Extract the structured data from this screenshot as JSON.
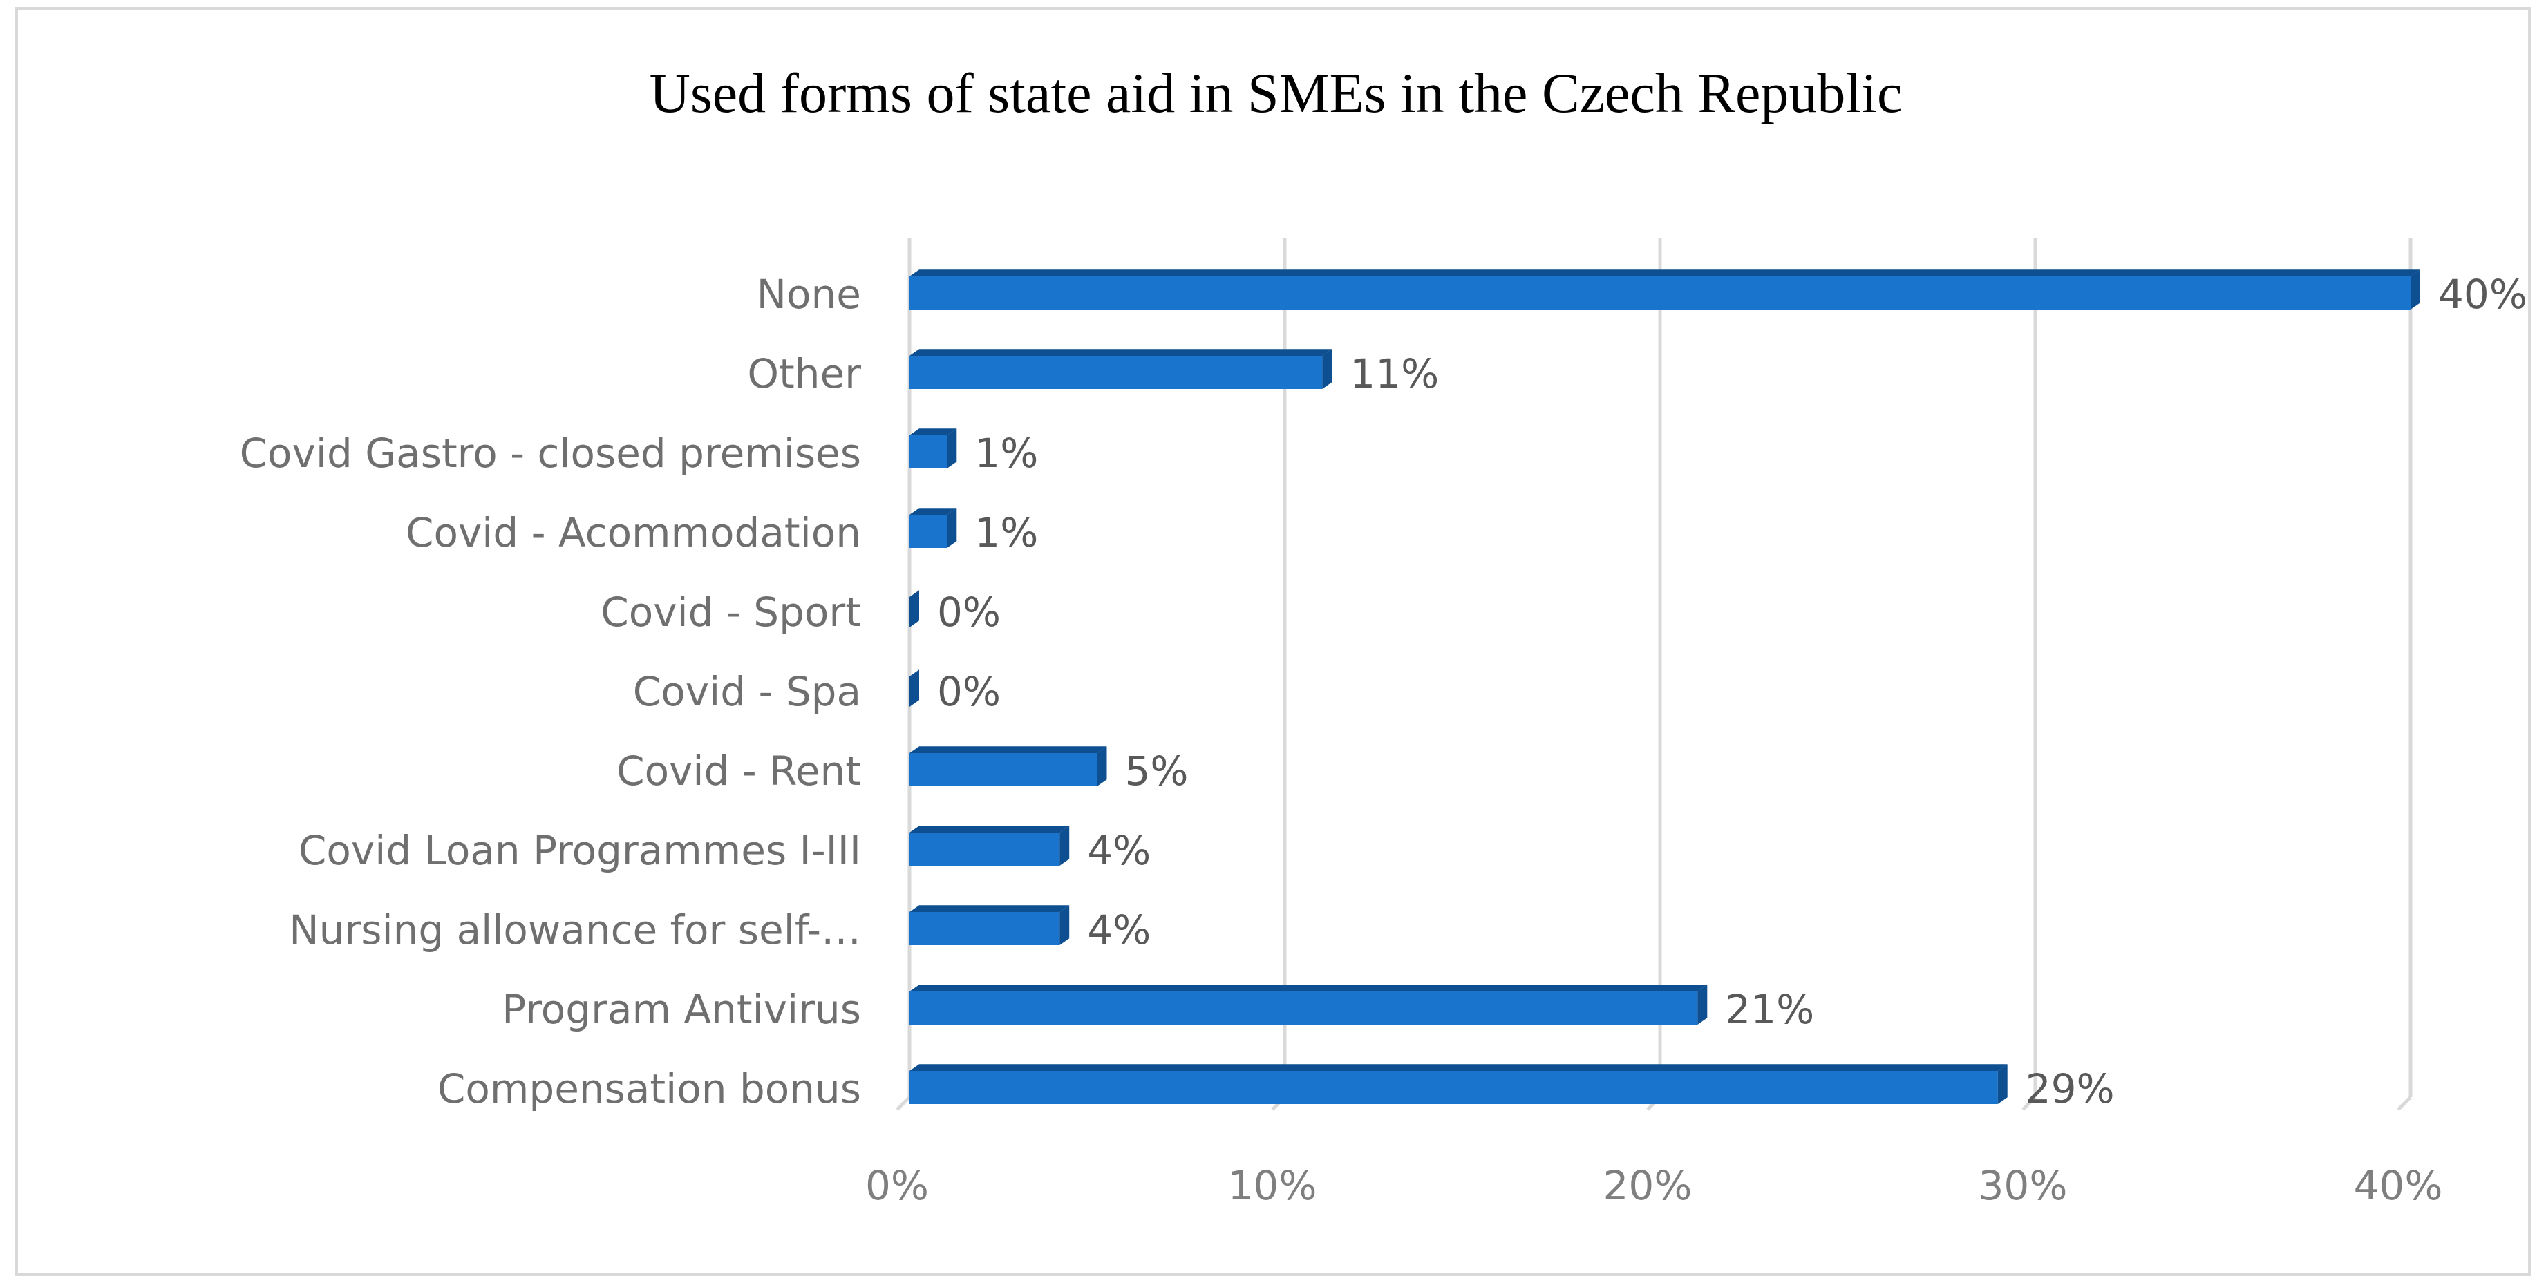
{
  "chart_data": {
    "type": "bar",
    "orientation": "horizontal",
    "title": "Used forms of state aid in SMEs in the Czech Republic",
    "xlabel": "",
    "ylabel": "",
    "xlim": [
      0,
      40
    ],
    "grid": true,
    "categories": [
      "None",
      "Other",
      "Covid Gastro - closed premises",
      "Covid - Acommodation",
      "Covid - Sport",
      "Covid - Spa",
      "Covid - Rent",
      "Covid Loan Programmes I-III",
      "Nursing allowance for self-…",
      "Program Antivirus",
      "Compensation bonus"
    ],
    "values": [
      40,
      11,
      1,
      1,
      0,
      0,
      5,
      4,
      4,
      21,
      29
    ],
    "data_labels": [
      "40%",
      "11%",
      "1%",
      "1%",
      "0%",
      "0%",
      "5%",
      "4%",
      "4%",
      "21%",
      "29%"
    ],
    "x_ticks": [
      0,
      10,
      20,
      30,
      40
    ],
    "x_tick_labels": [
      "0%",
      "10%",
      "20%",
      "30%",
      "40%"
    ],
    "bar_color": "#1874cd",
    "bar_edge_color": "#0d4f91",
    "grid_color": "#d9d9d9"
  }
}
